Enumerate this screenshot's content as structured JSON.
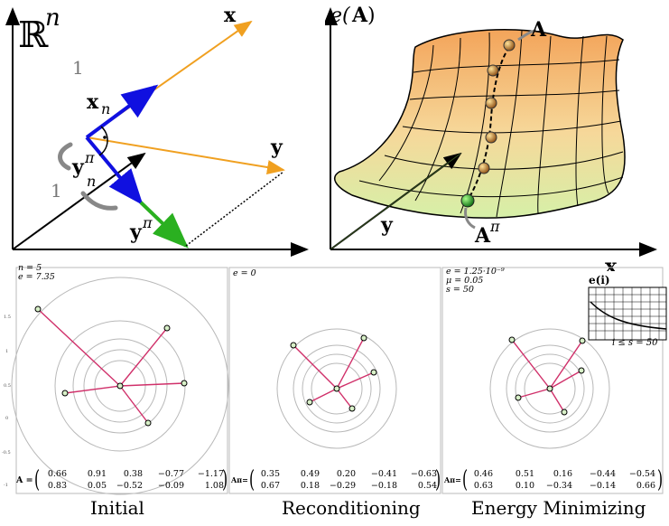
{
  "top_left": {
    "space_label": "ℝ",
    "space_exp": "n",
    "x_label": "x",
    "xn_label": "x",
    "xn_sub": "n",
    "y_label": "y",
    "ynpi_label": "y",
    "ynpi_sup": "π",
    "ynpi_sub": "n",
    "ypi_label": "y",
    "ypi_sup": "π",
    "one_top": "1",
    "one_left": "1"
  },
  "top_right": {
    "energy_label": "e(",
    "energy_A": "A",
    "energy_close": ")",
    "A_label": "A",
    "Api_label": "A",
    "Api_sup": "π",
    "y_label": "y",
    "x_label": "x"
  },
  "panels": [
    {
      "caption": "Initial",
      "info": [
        "n = 5",
        "e = 7.35"
      ],
      "matrix_label": "A =",
      "matrix_rows": [
        [
          "0.66",
          "0.91",
          "0.38",
          "−0.77",
          "−1.17"
        ],
        [
          "0.83",
          "0.05",
          "−0.52",
          "−0.09",
          "1.08"
        ]
      ]
    },
    {
      "caption": "Reconditioning",
      "info": [
        "e = 0"
      ],
      "matrix_label": "Aπ=",
      "matrix_rows": [
        [
          "0.35",
          "0.49",
          "0.20",
          "−0.41",
          "−0.63"
        ],
        [
          "0.67",
          "0.18",
          "−0.29",
          "−0.18",
          "0.54"
        ]
      ]
    },
    {
      "caption": "Energy Minimizing",
      "info": [
        "e = 1.25·10⁻⁹",
        "μ = 0.05",
        "s = 50"
      ],
      "matrix_label": "Aπ=",
      "matrix_rows": [
        [
          "0.46",
          "0.51",
          "0.16",
          "−0.44",
          "−0.54"
        ],
        [
          "0.63",
          "0.10",
          "−0.34",
          "−0.14",
          "0.66"
        ]
      ],
      "inset_title": "e(i)",
      "inset_label": "i ≤ s = 50"
    }
  ],
  "colors": {
    "vector_x": "#f0a020",
    "vector_xn": "#1010e0",
    "vector_ypi": "#2ab020",
    "chord": "#d0306a",
    "circle": "#b8b8b8"
  }
}
